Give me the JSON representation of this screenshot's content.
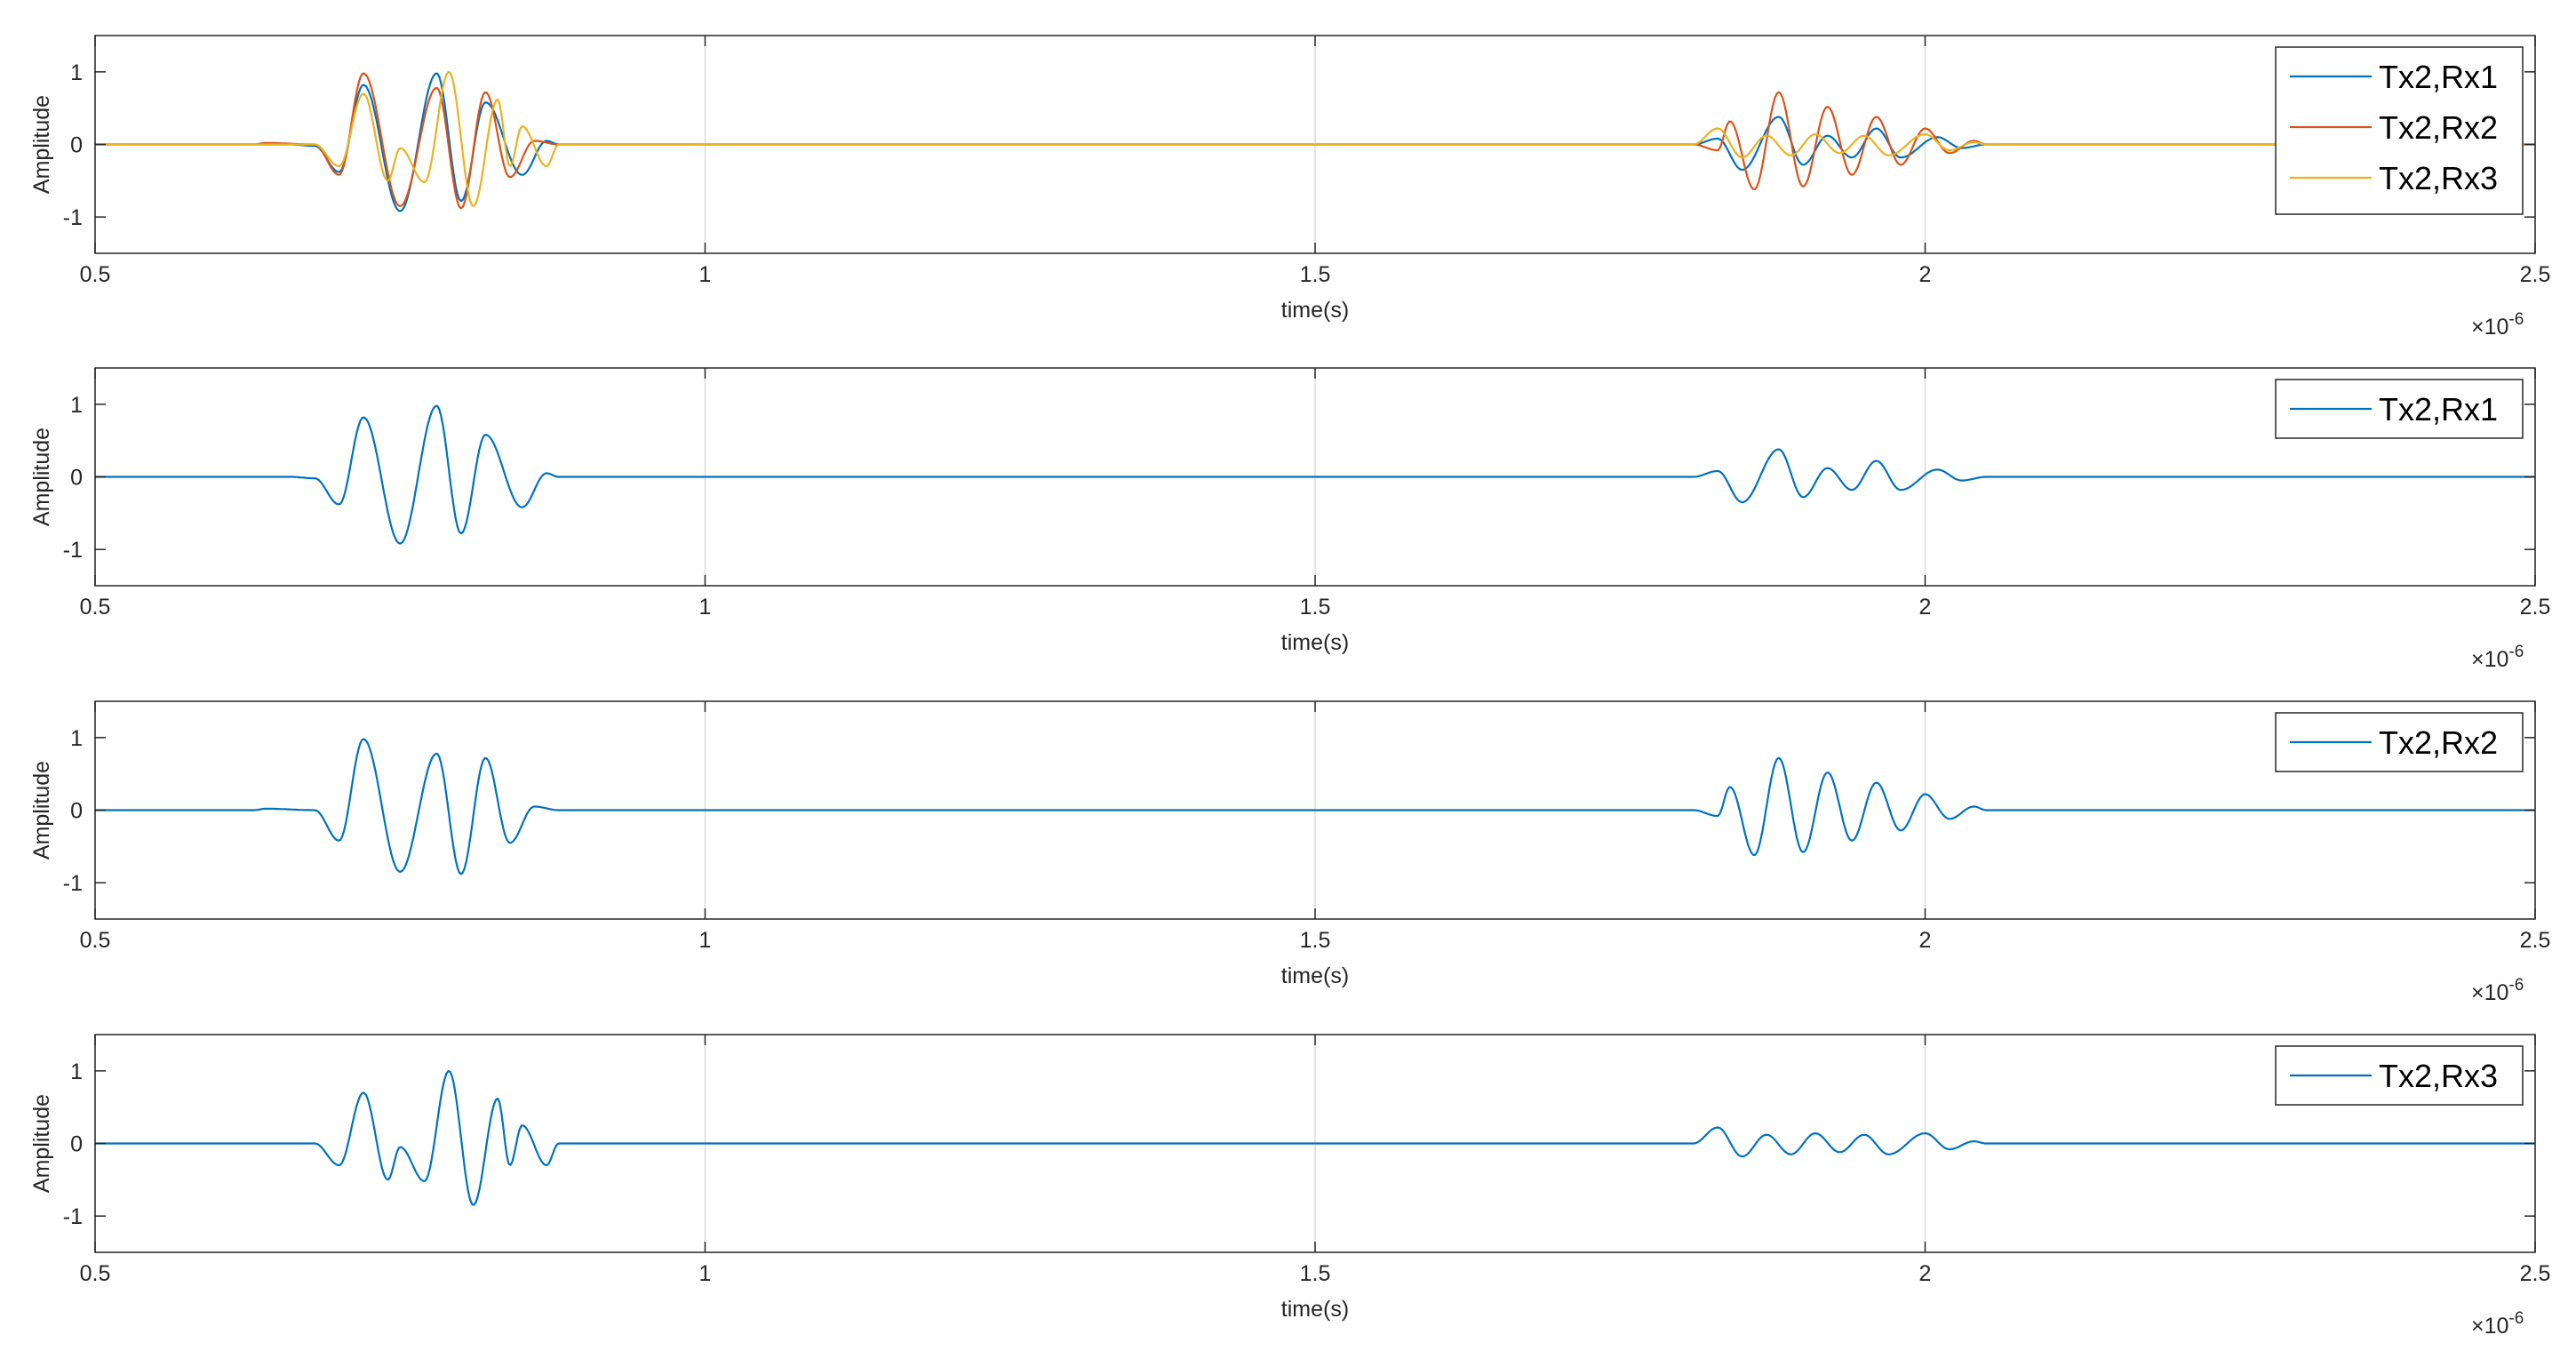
{
  "chart_data": [
    {
      "type": "line",
      "xlabel": "time(s)",
      "ylabel": "Amplitude",
      "x_multiplier": "×10",
      "x_exponent": "-6",
      "xlim": [
        0.5,
        2.5
      ],
      "ylim": [
        -1.5,
        1.5
      ],
      "x_ticks": [
        "0.5",
        "1",
        "1.5",
        "2",
        "2.5"
      ],
      "y_ticks": [
        "1",
        "0",
        "-1"
      ],
      "grid": "vertical at x ticks",
      "legend_position": "top-right",
      "legend": [
        "Tx2,Rx1",
        "Tx2,Rx2",
        "Tx2,Rx3"
      ],
      "series": [
        {
          "name": "Tx2,Rx1",
          "color": "#0072BD",
          "packets": [
            {
              "peaks": [
                [
                  0.66,
                  0.0
                ],
                [
                  0.68,
                  -0.02
                ],
                [
                  0.7,
                  -0.38
                ],
                [
                  0.72,
                  0.82
                ],
                [
                  0.75,
                  -0.92
                ],
                [
                  0.78,
                  0.98
                ],
                [
                  0.8,
                  -0.78
                ],
                [
                  0.82,
                  0.58
                ],
                [
                  0.85,
                  -0.42
                ],
                [
                  0.87,
                  0.05
                ],
                [
                  0.88,
                  0.0
                ]
              ]
            },
            {
              "peaks": [
                [
                  1.81,
                  0.0
                ],
                [
                  1.83,
                  0.08
                ],
                [
                  1.85,
                  -0.35
                ],
                [
                  1.88,
                  0.38
                ],
                [
                  1.9,
                  -0.28
                ],
                [
                  1.92,
                  0.12
                ],
                [
                  1.94,
                  -0.18
                ],
                [
                  1.96,
                  0.22
                ],
                [
                  1.98,
                  -0.18
                ],
                [
                  2.01,
                  0.1
                ],
                [
                  2.03,
                  -0.05
                ],
                [
                  2.05,
                  0.0
                ]
              ]
            }
          ]
        },
        {
          "name": "Tx2,Rx2",
          "color": "#D95319",
          "packets": [
            {
              "peaks": [
                [
                  0.63,
                  0.0
                ],
                [
                  0.64,
                  0.02
                ],
                [
                  0.68,
                  0.0
                ],
                [
                  0.7,
                  -0.42
                ],
                [
                  0.72,
                  0.98
                ],
                [
                  0.75,
                  -0.85
                ],
                [
                  0.78,
                  0.78
                ],
                [
                  0.8,
                  -0.88
                ],
                [
                  0.82,
                  0.72
                ],
                [
                  0.84,
                  -0.45
                ],
                [
                  0.86,
                  0.05
                ],
                [
                  0.88,
                  0.0
                ]
              ]
            },
            {
              "peaks": [
                [
                  1.81,
                  0.0
                ],
                [
                  1.83,
                  -0.08
                ],
                [
                  1.84,
                  0.32
                ],
                [
                  1.86,
                  -0.62
                ],
                [
                  1.88,
                  0.72
                ],
                [
                  1.9,
                  -0.58
                ],
                [
                  1.92,
                  0.52
                ],
                [
                  1.94,
                  -0.42
                ],
                [
                  1.96,
                  0.38
                ],
                [
                  1.98,
                  -0.28
                ],
                [
                  2.0,
                  0.22
                ],
                [
                  2.02,
                  -0.12
                ],
                [
                  2.04,
                  0.05
                ],
                [
                  2.05,
                  0.0
                ]
              ]
            }
          ]
        },
        {
          "name": "Tx2,Rx3",
          "color": "#EDB120",
          "packets": [
            {
              "peaks": [
                [
                  0.68,
                  0.0
                ],
                [
                  0.7,
                  -0.3
                ],
                [
                  0.72,
                  0.7
                ],
                [
                  0.74,
                  -0.5
                ],
                [
                  0.75,
                  -0.05
                ],
                [
                  0.77,
                  -0.52
                ],
                [
                  0.79,
                  1.0
                ],
                [
                  0.81,
                  -0.85
                ],
                [
                  0.83,
                  0.62
                ],
                [
                  0.84,
                  -0.3
                ],
                [
                  0.85,
                  0.25
                ],
                [
                  0.87,
                  -0.3
                ],
                [
                  0.88,
                  0.0
                ]
              ]
            },
            {
              "peaks": [
                [
                  1.81,
                  0.0
                ],
                [
                  1.83,
                  0.22
                ],
                [
                  1.85,
                  -0.18
                ],
                [
                  1.87,
                  0.12
                ],
                [
                  1.89,
                  -0.15
                ],
                [
                  1.91,
                  0.14
                ],
                [
                  1.93,
                  -0.12
                ],
                [
                  1.95,
                  0.12
                ],
                [
                  1.97,
                  -0.15
                ],
                [
                  2.0,
                  0.14
                ],
                [
                  2.02,
                  -0.08
                ],
                [
                  2.04,
                  0.03
                ],
                [
                  2.05,
                  0.0
                ]
              ]
            }
          ]
        }
      ]
    },
    {
      "type": "line",
      "xlabel": "time(s)",
      "ylabel": "Amplitude",
      "x_multiplier": "×10",
      "x_exponent": "-6",
      "xlim": [
        0.5,
        2.5
      ],
      "ylim": [
        -1.5,
        1.5
      ],
      "x_ticks": [
        "0.5",
        "1",
        "1.5",
        "2",
        "2.5"
      ],
      "y_ticks": [
        "1",
        "0",
        "-1"
      ],
      "grid": "vertical at x ticks",
      "legend_position": "top-right",
      "legend": [
        "Tx2,Rx1"
      ],
      "series": [
        {
          "name": "Tx2,Rx1",
          "color": "#0072BD",
          "packets": [
            {
              "peaks": [
                [
                  0.66,
                  0.0
                ],
                [
                  0.68,
                  -0.02
                ],
                [
                  0.7,
                  -0.38
                ],
                [
                  0.72,
                  0.82
                ],
                [
                  0.75,
                  -0.92
                ],
                [
                  0.78,
                  0.98
                ],
                [
                  0.8,
                  -0.78
                ],
                [
                  0.82,
                  0.58
                ],
                [
                  0.85,
                  -0.42
                ],
                [
                  0.87,
                  0.05
                ],
                [
                  0.88,
                  0.0
                ]
              ]
            },
            {
              "peaks": [
                [
                  1.81,
                  0.0
                ],
                [
                  1.83,
                  0.08
                ],
                [
                  1.85,
                  -0.35
                ],
                [
                  1.88,
                  0.38
                ],
                [
                  1.9,
                  -0.28
                ],
                [
                  1.92,
                  0.12
                ],
                [
                  1.94,
                  -0.18
                ],
                [
                  1.96,
                  0.22
                ],
                [
                  1.98,
                  -0.18
                ],
                [
                  2.01,
                  0.1
                ],
                [
                  2.03,
                  -0.05
                ],
                [
                  2.05,
                  0.0
                ]
              ]
            }
          ]
        }
      ]
    },
    {
      "type": "line",
      "xlabel": "time(s)",
      "ylabel": "Amplitude",
      "x_multiplier": "×10",
      "x_exponent": "-6",
      "xlim": [
        0.5,
        2.5
      ],
      "ylim": [
        -1.5,
        1.5
      ],
      "x_ticks": [
        "0.5",
        "1",
        "1.5",
        "2",
        "2.5"
      ],
      "y_ticks": [
        "1",
        "0",
        "-1"
      ],
      "grid": "vertical at x ticks",
      "legend_position": "top-right",
      "legend": [
        "Tx2,Rx2"
      ],
      "series": [
        {
          "name": "Tx2,Rx2",
          "color": "#0072BD",
          "packets": [
            {
              "peaks": [
                [
                  0.63,
                  0.0
                ],
                [
                  0.64,
                  0.02
                ],
                [
                  0.68,
                  0.0
                ],
                [
                  0.7,
                  -0.42
                ],
                [
                  0.72,
                  0.98
                ],
                [
                  0.75,
                  -0.85
                ],
                [
                  0.78,
                  0.78
                ],
                [
                  0.8,
                  -0.88
                ],
                [
                  0.82,
                  0.72
                ],
                [
                  0.84,
                  -0.45
                ],
                [
                  0.86,
                  0.05
                ],
                [
                  0.88,
                  0.0
                ]
              ]
            },
            {
              "peaks": [
                [
                  1.81,
                  0.0
                ],
                [
                  1.83,
                  -0.08
                ],
                [
                  1.84,
                  0.32
                ],
                [
                  1.86,
                  -0.62
                ],
                [
                  1.88,
                  0.72
                ],
                [
                  1.9,
                  -0.58
                ],
                [
                  1.92,
                  0.52
                ],
                [
                  1.94,
                  -0.42
                ],
                [
                  1.96,
                  0.38
                ],
                [
                  1.98,
                  -0.28
                ],
                [
                  2.0,
                  0.22
                ],
                [
                  2.02,
                  -0.12
                ],
                [
                  2.04,
                  0.05
                ],
                [
                  2.05,
                  0.0
                ]
              ]
            }
          ]
        }
      ]
    },
    {
      "type": "line",
      "xlabel": "time(s)",
      "ylabel": "Amplitude",
      "x_multiplier": "×10",
      "x_exponent": "-6",
      "xlim": [
        0.5,
        2.5
      ],
      "ylim": [
        -1.5,
        1.5
      ],
      "x_ticks": [
        "0.5",
        "1",
        "1.5",
        "2",
        "2.5"
      ],
      "y_ticks": [
        "1",
        "0",
        "-1"
      ],
      "grid": "vertical at x ticks",
      "legend_position": "top-right",
      "legend": [
        "Tx2,Rx3"
      ],
      "series": [
        {
          "name": "Tx2,Rx3",
          "color": "#0072BD",
          "packets": [
            {
              "peaks": [
                [
                  0.68,
                  0.0
                ],
                [
                  0.7,
                  -0.3
                ],
                [
                  0.72,
                  0.7
                ],
                [
                  0.74,
                  -0.5
                ],
                [
                  0.75,
                  -0.05
                ],
                [
                  0.77,
                  -0.52
                ],
                [
                  0.79,
                  1.0
                ],
                [
                  0.81,
                  -0.85
                ],
                [
                  0.83,
                  0.62
                ],
                [
                  0.84,
                  -0.3
                ],
                [
                  0.85,
                  0.25
                ],
                [
                  0.87,
                  -0.3
                ],
                [
                  0.88,
                  0.0
                ]
              ]
            },
            {
              "peaks": [
                [
                  1.81,
                  0.0
                ],
                [
                  1.83,
                  0.22
                ],
                [
                  1.85,
                  -0.18
                ],
                [
                  1.87,
                  0.12
                ],
                [
                  1.89,
                  -0.15
                ],
                [
                  1.91,
                  0.14
                ],
                [
                  1.93,
                  -0.12
                ],
                [
                  1.95,
                  0.12
                ],
                [
                  1.97,
                  -0.15
                ],
                [
                  2.0,
                  0.14
                ],
                [
                  2.02,
                  -0.08
                ],
                [
                  2.04,
                  0.03
                ],
                [
                  2.05,
                  0.0
                ]
              ]
            }
          ]
        }
      ]
    }
  ]
}
